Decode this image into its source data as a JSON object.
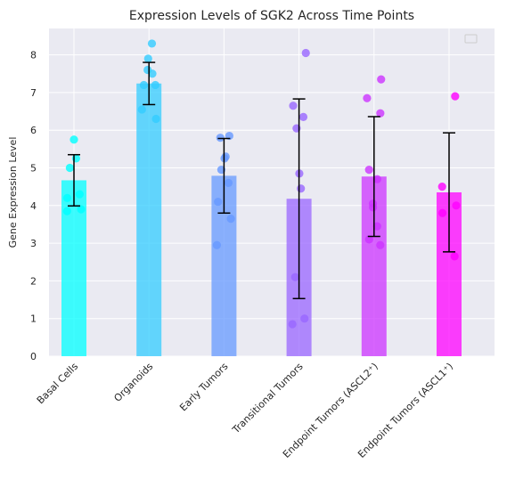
{
  "chart_data": {
    "type": "bar",
    "title": "Expression Levels of SGK2 Across Time Points",
    "xlabel": "",
    "ylabel": "Gene Expression Level",
    "ylim": [
      0,
      8.7
    ],
    "yticks": [
      "0",
      "1",
      "2",
      "3",
      "4",
      "5",
      "6",
      "7",
      "8"
    ],
    "grid": true,
    "legend": "top-right (empty)",
    "categories": [
      "Basal Cells",
      "Organoids",
      "Early Tumors",
      "Transitional Tumors",
      "Endpoint Tumors (ASCL2⁺)",
      "Endpoint Tumors (ASCL1⁺)"
    ],
    "values": [
      4.67,
      7.24,
      4.79,
      4.18,
      4.77,
      4.35
    ],
    "errors": [
      0.68,
      0.56,
      0.99,
      2.65,
      1.59,
      1.58
    ],
    "colors": [
      "#00ffff",
      "#33ccff",
      "#6699ff",
      "#9966ff",
      "#cc33ff",
      "#ff00ff"
    ],
    "points": [
      [
        5.75,
        5.25,
        5.0,
        4.3,
        4.2,
        3.9,
        3.85
      ],
      [
        8.3,
        7.9,
        7.6,
        7.5,
        7.2,
        7.2,
        6.55,
        6.3
      ],
      [
        5.85,
        5.8,
        5.3,
        5.25,
        4.95,
        4.6,
        4.1,
        3.65,
        2.95
      ],
      [
        8.05,
        6.65,
        6.35,
        6.05,
        4.85,
        4.45,
        2.1,
        1.0,
        0.85
      ],
      [
        7.35,
        6.85,
        6.45,
        4.95,
        4.7,
        4.05,
        3.95,
        3.45,
        3.1,
        2.95
      ],
      [
        6.9,
        4.5,
        4.0,
        3.8,
        2.65
      ]
    ]
  }
}
